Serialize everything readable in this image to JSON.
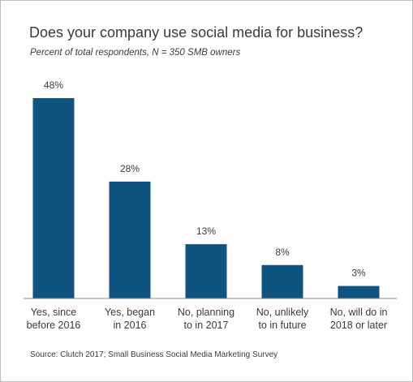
{
  "chart_data": {
    "type": "bar",
    "title": "Does your company use social media for business?",
    "subtitle": "Percent of total respondents, N = 350 SMB owners",
    "categories": [
      [
        "Yes, since",
        "before 2016"
      ],
      [
        "Yes, began",
        "in 2016"
      ],
      [
        "No, planning",
        "to in 2017"
      ],
      [
        "No, unlikely",
        "to in future"
      ],
      [
        "No, will do in",
        "2018 or later"
      ]
    ],
    "values": [
      48,
      28,
      13,
      8,
      3
    ],
    "value_labels": [
      "48%",
      "28%",
      "13%",
      "8%",
      "3%"
    ],
    "ylim": [
      0,
      48
    ],
    "grid": false,
    "bar_color": "#0f5480",
    "source": "Source: Clutch 2017; Small Business Social Media Marketing Survey"
  }
}
